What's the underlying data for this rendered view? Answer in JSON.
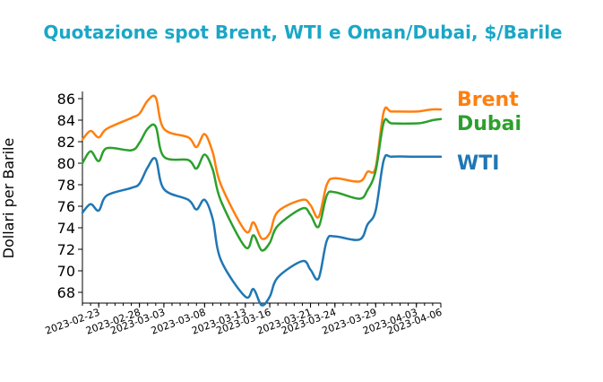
{
  "chart_data": {
    "type": "line",
    "title": "Quotazione spot Brent, WTI e Oman/Dubai, $/Barile",
    "title_color": "#1aa7c7",
    "xlabel": "",
    "ylabel": "Dollari per Barile",
    "ylim": [
      67,
      86.5
    ],
    "yticks": [
      68,
      70,
      72,
      74,
      76,
      78,
      80,
      82,
      84,
      86
    ],
    "x_range": [
      "2023-02-21",
      "2023-04-06"
    ],
    "x_tick_labels": [
      "2023-02-23",
      "2023-02-28",
      "2023-03-03",
      "2023-03-08",
      "2023-03-13",
      "2023-03-16",
      "2023-03-21",
      "2023-03-24",
      "2023-03-29",
      "2023-04-03",
      "2023-04-06"
    ],
    "grid": false,
    "legend": "inline-right",
    "dates": [
      "2023-02-21",
      "2023-02-22",
      "2023-02-23",
      "2023-02-24",
      "2023-02-27",
      "2023-02-28",
      "2023-03-01",
      "2023-03-02",
      "2023-03-03",
      "2023-03-06",
      "2023-03-07",
      "2023-03-08",
      "2023-03-09",
      "2023-03-10",
      "2023-03-13",
      "2023-03-14",
      "2023-03-15",
      "2023-03-16",
      "2023-03-17",
      "2023-03-20",
      "2023-03-21",
      "2023-03-22",
      "2023-03-23",
      "2023-03-24",
      "2023-03-27",
      "2023-03-28",
      "2023-03-29",
      "2023-03-30",
      "2023-03-31",
      "2023-04-03",
      "2023-04-04",
      "2023-04-05",
      "2023-04-06"
    ],
    "series": [
      {
        "name": "Brent",
        "color": "#ff7f0e",
        "values": [
          82.2,
          83.0,
          82.4,
          83.2,
          84.2,
          84.6,
          85.8,
          86.1,
          83.2,
          82.4,
          81.5,
          82.7,
          81.0,
          78.0,
          73.7,
          74.5,
          73.0,
          73.5,
          75.5,
          76.6,
          76.1,
          75.0,
          78.0,
          78.6,
          78.3,
          79.2,
          79.6,
          84.8,
          84.8,
          84.8,
          84.9,
          85.0,
          85.0
        ]
      },
      {
        "name": "Dubai",
        "color": "#2ca02c",
        "values": [
          80.0,
          81.1,
          80.2,
          81.4,
          81.2,
          81.9,
          83.2,
          83.4,
          80.6,
          80.3,
          79.5,
          80.8,
          79.4,
          76.5,
          72.2,
          73.3,
          71.9,
          72.6,
          74.2,
          75.8,
          75.2,
          74.1,
          77.0,
          77.3,
          76.7,
          77.5,
          79.3,
          83.8,
          83.7,
          83.7,
          83.8,
          84.0,
          84.1
        ]
      },
      {
        "name": "WTI",
        "color": "#1f77b4",
        "values": [
          75.4,
          76.2,
          75.6,
          77.0,
          77.7,
          78.1,
          79.6,
          80.4,
          77.6,
          76.6,
          75.7,
          76.6,
          74.8,
          71.0,
          67.6,
          68.3,
          66.8,
          67.6,
          69.4,
          70.9,
          70.1,
          69.3,
          72.8,
          73.2,
          72.9,
          74.3,
          75.6,
          80.3,
          80.6,
          80.6,
          80.6,
          80.6,
          80.6
        ]
      }
    ]
  }
}
